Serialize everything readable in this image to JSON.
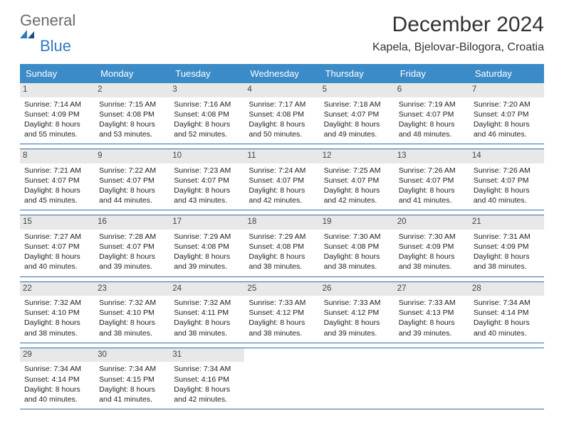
{
  "logo": {
    "word1": "General",
    "word2": "Blue"
  },
  "header": {
    "month_title": "December 2024",
    "location": "Kapela, Bjelovar-Bilogora, Croatia"
  },
  "day_names": [
    "Sunday",
    "Monday",
    "Tuesday",
    "Wednesday",
    "Thursday",
    "Friday",
    "Saturday"
  ],
  "colors": {
    "header_bg": "#3b8bc9",
    "header_text": "#ffffff",
    "rule": "#2f6ea8",
    "daynum_bg": "#e8e8e8",
    "logo_gray": "#6b6b6b",
    "logo_blue": "#2f7bbf"
  },
  "weeks": [
    [
      {
        "n": "1",
        "sunrise": "7:14 AM",
        "sunset": "4:09 PM",
        "dl1": "8 hours",
        "dl2": "and 55 minutes."
      },
      {
        "n": "2",
        "sunrise": "7:15 AM",
        "sunset": "4:08 PM",
        "dl1": "8 hours",
        "dl2": "and 53 minutes."
      },
      {
        "n": "3",
        "sunrise": "7:16 AM",
        "sunset": "4:08 PM",
        "dl1": "8 hours",
        "dl2": "and 52 minutes."
      },
      {
        "n": "4",
        "sunrise": "7:17 AM",
        "sunset": "4:08 PM",
        "dl1": "8 hours",
        "dl2": "and 50 minutes."
      },
      {
        "n": "5",
        "sunrise": "7:18 AM",
        "sunset": "4:07 PM",
        "dl1": "8 hours",
        "dl2": "and 49 minutes."
      },
      {
        "n": "6",
        "sunrise": "7:19 AM",
        "sunset": "4:07 PM",
        "dl1": "8 hours",
        "dl2": "and 48 minutes."
      },
      {
        "n": "7",
        "sunrise": "7:20 AM",
        "sunset": "4:07 PM",
        "dl1": "8 hours",
        "dl2": "and 46 minutes."
      }
    ],
    [
      {
        "n": "8",
        "sunrise": "7:21 AM",
        "sunset": "4:07 PM",
        "dl1": "8 hours",
        "dl2": "and 45 minutes."
      },
      {
        "n": "9",
        "sunrise": "7:22 AM",
        "sunset": "4:07 PM",
        "dl1": "8 hours",
        "dl2": "and 44 minutes."
      },
      {
        "n": "10",
        "sunrise": "7:23 AM",
        "sunset": "4:07 PM",
        "dl1": "8 hours",
        "dl2": "and 43 minutes."
      },
      {
        "n": "11",
        "sunrise": "7:24 AM",
        "sunset": "4:07 PM",
        "dl1": "8 hours",
        "dl2": "and 42 minutes."
      },
      {
        "n": "12",
        "sunrise": "7:25 AM",
        "sunset": "4:07 PM",
        "dl1": "8 hours",
        "dl2": "and 42 minutes."
      },
      {
        "n": "13",
        "sunrise": "7:26 AM",
        "sunset": "4:07 PM",
        "dl1": "8 hours",
        "dl2": "and 41 minutes."
      },
      {
        "n": "14",
        "sunrise": "7:26 AM",
        "sunset": "4:07 PM",
        "dl1": "8 hours",
        "dl2": "and 40 minutes."
      }
    ],
    [
      {
        "n": "15",
        "sunrise": "7:27 AM",
        "sunset": "4:07 PM",
        "dl1": "8 hours",
        "dl2": "and 40 minutes."
      },
      {
        "n": "16",
        "sunrise": "7:28 AM",
        "sunset": "4:07 PM",
        "dl1": "8 hours",
        "dl2": "and 39 minutes."
      },
      {
        "n": "17",
        "sunrise": "7:29 AM",
        "sunset": "4:08 PM",
        "dl1": "8 hours",
        "dl2": "and 39 minutes."
      },
      {
        "n": "18",
        "sunrise": "7:29 AM",
        "sunset": "4:08 PM",
        "dl1": "8 hours",
        "dl2": "and 38 minutes."
      },
      {
        "n": "19",
        "sunrise": "7:30 AM",
        "sunset": "4:08 PM",
        "dl1": "8 hours",
        "dl2": "and 38 minutes."
      },
      {
        "n": "20",
        "sunrise": "7:30 AM",
        "sunset": "4:09 PM",
        "dl1": "8 hours",
        "dl2": "and 38 minutes."
      },
      {
        "n": "21",
        "sunrise": "7:31 AM",
        "sunset": "4:09 PM",
        "dl1": "8 hours",
        "dl2": "and 38 minutes."
      }
    ],
    [
      {
        "n": "22",
        "sunrise": "7:32 AM",
        "sunset": "4:10 PM",
        "dl1": "8 hours",
        "dl2": "and 38 minutes."
      },
      {
        "n": "23",
        "sunrise": "7:32 AM",
        "sunset": "4:10 PM",
        "dl1": "8 hours",
        "dl2": "and 38 minutes."
      },
      {
        "n": "24",
        "sunrise": "7:32 AM",
        "sunset": "4:11 PM",
        "dl1": "8 hours",
        "dl2": "and 38 minutes."
      },
      {
        "n": "25",
        "sunrise": "7:33 AM",
        "sunset": "4:12 PM",
        "dl1": "8 hours",
        "dl2": "and 38 minutes."
      },
      {
        "n": "26",
        "sunrise": "7:33 AM",
        "sunset": "4:12 PM",
        "dl1": "8 hours",
        "dl2": "and 39 minutes."
      },
      {
        "n": "27",
        "sunrise": "7:33 AM",
        "sunset": "4:13 PM",
        "dl1": "8 hours",
        "dl2": "and 39 minutes."
      },
      {
        "n": "28",
        "sunrise": "7:34 AM",
        "sunset": "4:14 PM",
        "dl1": "8 hours",
        "dl2": "and 40 minutes."
      }
    ],
    [
      {
        "n": "29",
        "sunrise": "7:34 AM",
        "sunset": "4:14 PM",
        "dl1": "8 hours",
        "dl2": "and 40 minutes."
      },
      {
        "n": "30",
        "sunrise": "7:34 AM",
        "sunset": "4:15 PM",
        "dl1": "8 hours",
        "dl2": "and 41 minutes."
      },
      {
        "n": "31",
        "sunrise": "7:34 AM",
        "sunset": "4:16 PM",
        "dl1": "8 hours",
        "dl2": "and 42 minutes."
      },
      null,
      null,
      null,
      null
    ]
  ],
  "labels": {
    "sunrise_prefix": "Sunrise: ",
    "sunset_prefix": "Sunset: ",
    "daylight_prefix": "Daylight: "
  }
}
